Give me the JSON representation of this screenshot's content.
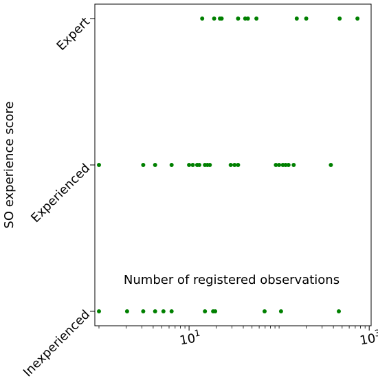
{
  "chart_data": {
    "type": "scatter",
    "xlabel": "Number of registered observations",
    "ylabel": "SO experience score",
    "xscale": "log",
    "xlim": [
      0.9,
      1050
    ],
    "x_ticks": [
      {
        "value": 10,
        "label_base": "10",
        "label_exp": "1"
      },
      {
        "value": 1000,
        "label_base": "10",
        "label_exp": "3"
      }
    ],
    "categories": [
      "Inexperienced",
      "Experienced",
      "Expert"
    ],
    "marker_color": "#008000",
    "grid": false,
    "legend": false,
    "series": [
      {
        "category": "Expert",
        "x": [
          14,
          19,
          22,
          23,
          35,
          42,
          45,
          56,
          157,
          200,
          470,
          740
        ]
      },
      {
        "category": "Experienced",
        "x": [
          1,
          3.1,
          4.2,
          6.4,
          10,
          11,
          12.3,
          13,
          15,
          16,
          17,
          29,
          32,
          35,
          92,
          100,
          110,
          118,
          127,
          145,
          375
        ]
      },
      {
        "category": "Inexperienced",
        "x": [
          1,
          2.05,
          3.1,
          4.2,
          5.2,
          6.4,
          15,
          18.5,
          19.5,
          69,
          105,
          460
        ]
      }
    ]
  }
}
